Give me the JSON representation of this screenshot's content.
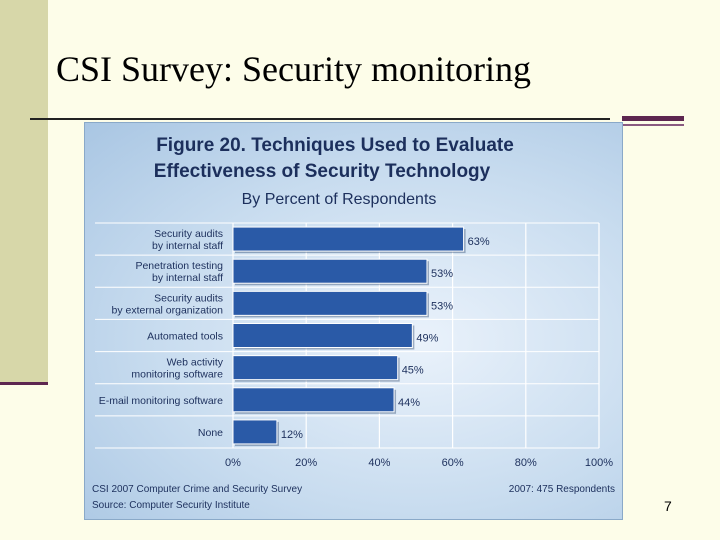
{
  "slide": {
    "title": "CSI Survey: Security monitoring",
    "page_number": "7"
  },
  "chart_data": {
    "type": "bar",
    "orientation": "horizontal",
    "title_line1": "Figure 20. Techniques Used to Evaluate",
    "title_line2": "Effectiveness of Security Technology",
    "subtitle": "By Percent of Respondents",
    "categories": [
      [
        "Security audits",
        "by internal staff"
      ],
      [
        "Penetration testing",
        "by internal staff"
      ],
      [
        "Security audits",
        "by external organization"
      ],
      [
        "Automated tools"
      ],
      [
        "Web activity",
        "monitoring software"
      ],
      [
        "E-mail monitoring software"
      ],
      [
        "None"
      ]
    ],
    "values": [
      63,
      53,
      53,
      49,
      45,
      44,
      12
    ],
    "data_labels": [
      "63%",
      "53%",
      "53%",
      "49%",
      "45%",
      "44%",
      "12%"
    ],
    "xlim": [
      0,
      100
    ],
    "xticks": [
      0,
      20,
      40,
      60,
      80,
      100
    ],
    "xtick_labels": [
      "0%",
      "20%",
      "40%",
      "60%",
      "80%",
      "100%"
    ],
    "grid": true,
    "bar_color": "#2a5aa7",
    "source_line1": "CSI 2007 Computer Crime and Security Survey",
    "source_line2": "Source: Computer Security Institute",
    "respondents": "2007: 475 Respondents"
  }
}
